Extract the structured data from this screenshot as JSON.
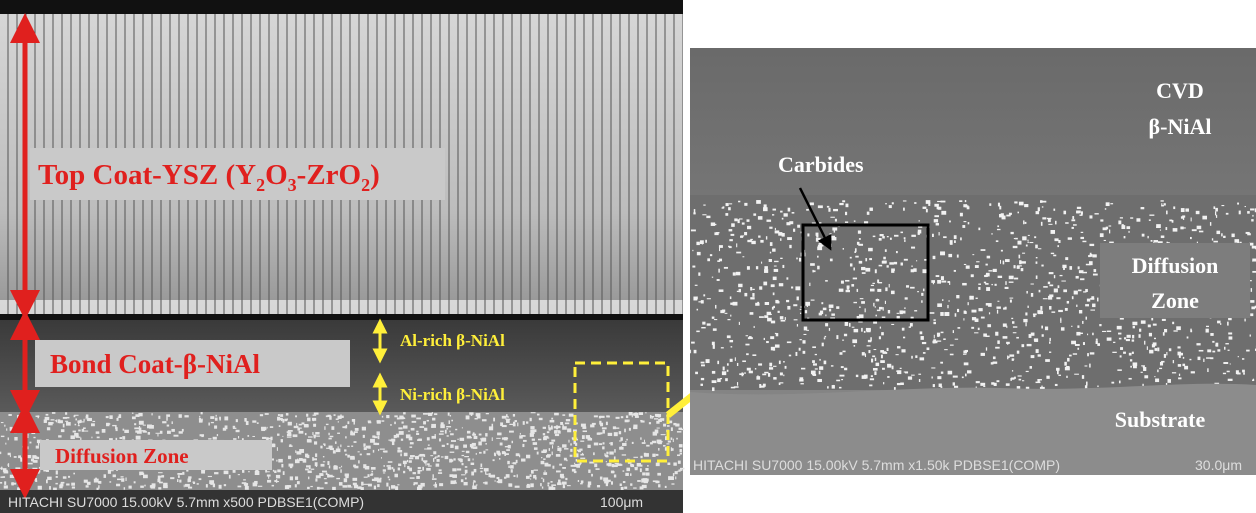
{
  "left_panel": {
    "top_coat_label": [
      "Top Coat-YSZ (Y",
      "2",
      "O",
      "3",
      "-ZrO",
      "2",
      ")"
    ],
    "bond_coat_label": "Bond Coat-β-NiAl",
    "diffusion_label": "Diffusion Zone",
    "al_rich_label": "Al-rich β-NiAl",
    "ni_rich_label": "Ni-rich β-NiAl",
    "footer": "HITACHI SU7000 15.00kV 5.7mm x500 PDBSE1(COMP)",
    "scale_bar": "100μm"
  },
  "right_panel": {
    "cvd_label": [
      "CVD",
      "β-NiAl"
    ],
    "carbides_label": "Carbides",
    "diffusion_label": [
      "Diffusion",
      "Zone"
    ],
    "substrate_label": "Substrate",
    "footer": "HITACHI SU7000 15.00kV 5.7mm x1.50k PDBSE1(COMP)",
    "scale_bar": "30.0μm"
  }
}
